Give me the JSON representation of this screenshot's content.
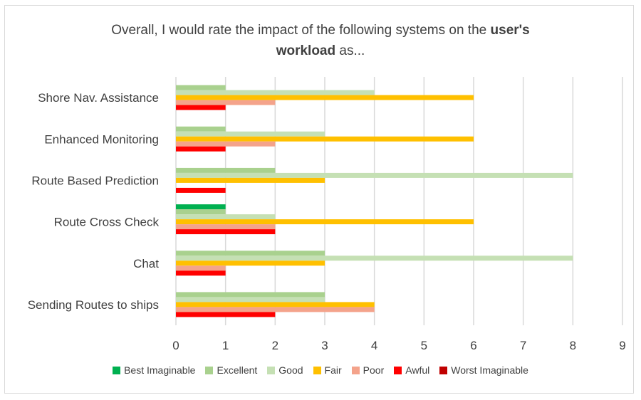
{
  "title": {
    "part1": "Overall, I would rate the impact of the following systems on the ",
    "bold1": "user's",
    "line2_bold": "workload",
    "line2_rest": " as..."
  },
  "chart_data": {
    "type": "bar",
    "orientation": "horizontal",
    "categories": [
      "Shore Nav. Assistance",
      "Enhanced Monitoring",
      "Route Based Prediction",
      "Route Cross Check",
      "Chat",
      "Sending Routes to ships"
    ],
    "series": [
      {
        "name": "Best Imaginable",
        "color": "#00b050",
        "values": [
          0,
          0,
          0,
          1,
          0,
          0
        ]
      },
      {
        "name": "Excellent",
        "color": "#a9d18e",
        "values": [
          1,
          1,
          2,
          1,
          3,
          3
        ]
      },
      {
        "name": "Good",
        "color": "#c5e0b4",
        "values": [
          4,
          3,
          8,
          2,
          8,
          3
        ]
      },
      {
        "name": "Fair",
        "color": "#ffc000",
        "values": [
          6,
          6,
          3,
          6,
          3,
          4
        ]
      },
      {
        "name": "Poor",
        "color": "#f4a38b",
        "values": [
          2,
          2,
          0,
          2,
          1,
          4
        ]
      },
      {
        "name": "Awful",
        "color": "#ff0000",
        "values": [
          1,
          1,
          1,
          2,
          1,
          2
        ]
      },
      {
        "name": "Worst Imaginable",
        "color": "#c00000",
        "values": [
          0,
          0,
          0,
          0,
          0,
          0
        ]
      }
    ],
    "xlim": [
      0,
      9
    ],
    "xticks": [
      "0",
      "1",
      "2",
      "3",
      "4",
      "5",
      "6",
      "7",
      "8",
      "9"
    ],
    "grid": true,
    "legend_position": "bottom"
  }
}
